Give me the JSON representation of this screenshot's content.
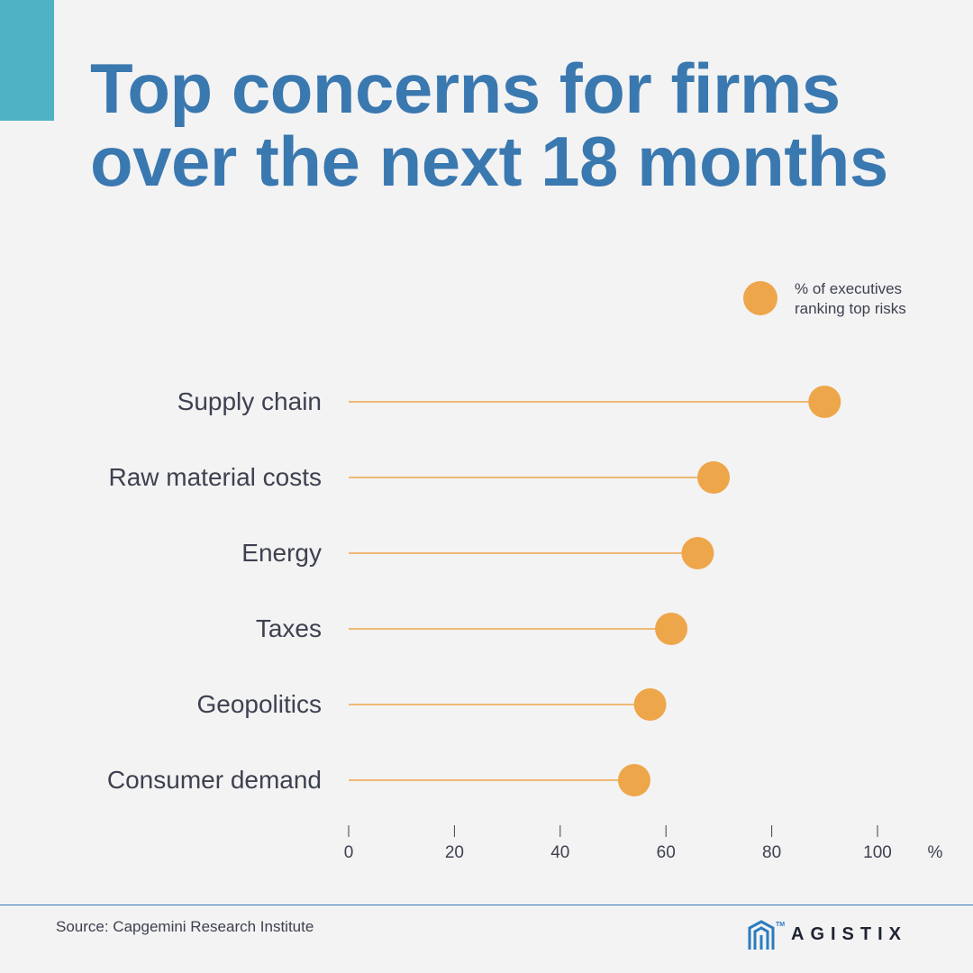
{
  "title": "Top concerns for firms over the next 18 months",
  "legend": {
    "label_line1": "% of executives",
    "label_line2": "ranking top risks"
  },
  "source": "Source: Capgemini Research Institute",
  "brand": {
    "name": "AGISTIX",
    "tm": "TM"
  },
  "colors": {
    "title": "#3a78b0",
    "accent_block": "#4fb3c5",
    "dot": "#eea64a",
    "stem": "#eea64a",
    "label_text": "#3e4150",
    "axis": "#3e4150",
    "brand_icon": "#2a7bbf"
  },
  "chart_data": {
    "type": "lollipop",
    "categories": [
      "Supply chain",
      "Raw material costs",
      "Energy",
      "Taxes",
      "Geopolitics",
      "Consumer demand"
    ],
    "values": [
      90,
      69,
      66,
      61,
      57,
      54
    ],
    "xlim": [
      0,
      100
    ],
    "xticks": [
      0,
      20,
      40,
      60,
      80,
      100
    ],
    "xtick_labels": [
      "0",
      "20",
      "40",
      "60",
      "80",
      "100"
    ],
    "x_unit": "%",
    "legend": "% of executives ranking top risks",
    "legend_position": "top-right",
    "grid": false
  }
}
